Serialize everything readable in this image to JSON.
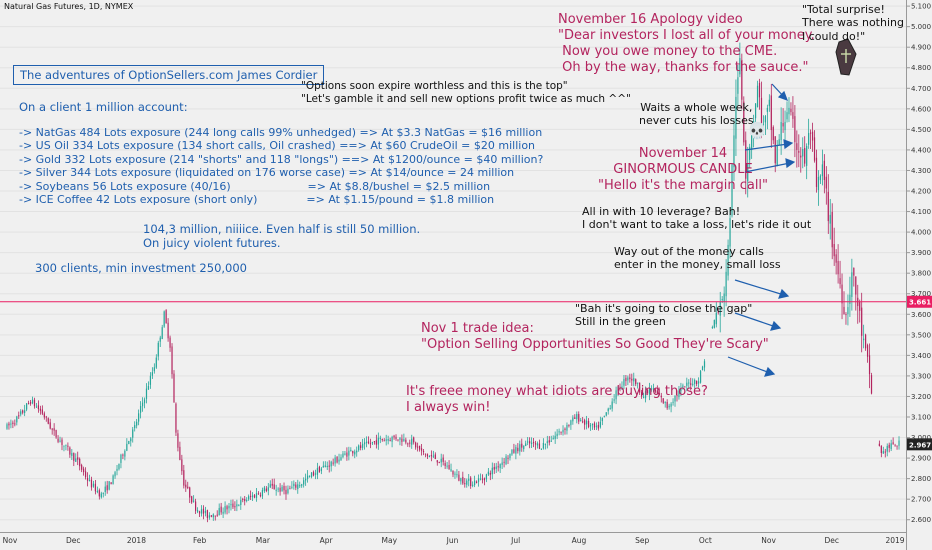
{
  "header": {
    "label": "Natural Gas Futures, 1D, NYMEX"
  },
  "colors": {
    "up": "#26a69a",
    "down": "#b3245e",
    "price_line": "#e91e63",
    "accent": "#1f5fae",
    "magenta": "#b3245e"
  },
  "annotations": {
    "title": "The adventures of OptionSellers.com James Cordier",
    "client_account": "On a client 1 million account:",
    "exposures": [
      "-> NatGas 484 Lots exposure (244 long calls 99% unhedged) => At $3.3 NatGas = $16 million",
      "-> US Oil 334 Lots exposure (134 short calls, Oil crashed) ==> At $60 CrudeOil = $20 million",
      "-> Gold 332 Lots exposure (214 \"shorts\" and 118 \"longs\") ==> At $1200/ounce = $40 million?",
      "-> Silver 344 Lots exposure (liquidated on 176 worse case) => At $14/ounce = 24 million",
      "-> Soybeans 56 Lots exposure (40/16)                      => At $8.8/bushel = $2.5 million",
      "-> ICE Coffee 42 Lots exposure (short only)              => At $1.15/pound = $1.8 million"
    ],
    "total": "104,3 million, niiiice. Even half is still 50 million.\nOn juicy violent futures.",
    "clients": "300 clients, min investment 250,000",
    "options_quote": "\"Options soon expire worthless and this is the top\"\n\"Let's gamble it and sell new options profit twice as much ^^\"",
    "nov16": "November 16 Apology video\n\"Dear investors I lost all of your money.\n Now you owe money to the CME.\n Oh by the way, thanks for the sauce.\"",
    "total_surprise": "\"Total surprise!\nThere was nothing\nI could do!\"",
    "waits": "Waits a whole week,\nnever cuts his losses",
    "skull": "💀",
    "nov14": "November 14\nGINORMOUS CANDLE\n\"Hello it's the margin call\"",
    "all_in": "All in with 10 leverage? Bah!\nI don't want to take a loss, let's ride it out",
    "way_out": "Way out of the money calls\nenter in the money, small loss",
    "bah": "\"Bah it's going to close the gap\"\nStill in the green",
    "nov1": "Nov 1 trade idea:\n\"Option Selling Opportunities So Good They're Scary\"",
    "freee": "It's freee money what idiots are buying those?\nI always win!"
  },
  "chart_data": {
    "type": "candlestick",
    "title": "Natural Gas Futures, 1D, NYMEX",
    "x_labels": [
      "Nov",
      "Dec",
      "2018",
      "Feb",
      "Mar",
      "Apr",
      "May",
      "Jun",
      "Jul",
      "Aug",
      "Sep",
      "Oct",
      "Nov",
      "Dec",
      "2019"
    ],
    "y_ticks": [
      "2.600",
      "2.700",
      "2.800",
      "2.900",
      "3.000",
      "3.100",
      "3.200",
      "3.300",
      "3.400",
      "3.500",
      "3.600",
      "3.700",
      "3.800",
      "3.900",
      "4.000",
      "4.100",
      "4.200",
      "4.300",
      "4.400",
      "4.500",
      "4.600",
      "4.700",
      "4.800",
      "4.900",
      "5.000",
      "5.100"
    ],
    "ylim": [
      2.55,
      5.12
    ],
    "price_lines": [
      {
        "value": 3.661,
        "label": "3.661",
        "color": "#e91e63"
      },
      {
        "value": 2.967,
        "label": "2.967",
        "color": "#222222"
      }
    ],
    "close_path": [
      [
        0,
        3.05
      ],
      [
        6,
        3.1
      ],
      [
        12,
        3.18
      ],
      [
        18,
        3.12
      ],
      [
        24,
        3.02
      ],
      [
        30,
        2.95
      ],
      [
        36,
        2.88
      ],
      [
        42,
        2.78
      ],
      [
        48,
        2.72
      ],
      [
        54,
        2.8
      ],
      [
        60,
        2.95
      ],
      [
        65,
        3.05
      ],
      [
        70,
        3.2
      ],
      [
        75,
        3.35
      ],
      [
        80,
        3.6
      ],
      [
        83,
        3.45
      ],
      [
        86,
        3.02
      ],
      [
        90,
        2.78
      ],
      [
        96,
        2.66
      ],
      [
        102,
        2.62
      ],
      [
        110,
        2.65
      ],
      [
        118,
        2.68
      ],
      [
        126,
        2.72
      ],
      [
        134,
        2.76
      ],
      [
        142,
        2.74
      ],
      [
        150,
        2.78
      ],
      [
        158,
        2.84
      ],
      [
        166,
        2.88
      ],
      [
        174,
        2.93
      ],
      [
        182,
        2.96
      ],
      [
        190,
        2.99
      ],
      [
        198,
        3.0
      ],
      [
        206,
        2.98
      ],
      [
        212,
        2.92
      ],
      [
        218,
        2.9
      ],
      [
        224,
        2.86
      ],
      [
        230,
        2.8
      ],
      [
        236,
        2.78
      ],
      [
        242,
        2.8
      ],
      [
        248,
        2.85
      ],
      [
        254,
        2.9
      ],
      [
        260,
        2.95
      ],
      [
        266,
        2.97
      ],
      [
        272,
        2.96
      ],
      [
        278,
        3.0
      ],
      [
        284,
        3.05
      ],
      [
        290,
        3.1
      ],
      [
        296,
        3.06
      ],
      [
        300,
        3.04
      ],
      [
        304,
        3.1
      ],
      [
        308,
        3.18
      ],
      [
        312,
        3.25
      ],
      [
        316,
        3.3
      ],
      [
        320,
        3.27
      ],
      [
        324,
        3.2
      ],
      [
        328,
        3.24
      ],
      [
        332,
        3.2
      ],
      [
        336,
        3.15
      ],
      [
        340,
        3.2
      ],
      [
        344,
        3.24
      ],
      [
        348,
        3.27
      ],
      [
        352,
        3.28
      ],
      [
        355,
        3.38
      ],
      [
        358,
        3.5
      ],
      [
        361,
        3.6
      ],
      [
        364,
        3.65
      ],
      [
        367,
        3.9
      ],
      [
        370,
        4.5
      ],
      [
        373,
        4.85
      ],
      [
        376,
        4.3
      ],
      [
        379,
        4.5
      ],
      [
        382,
        4.7
      ],
      [
        385,
        4.5
      ],
      [
        388,
        4.6
      ],
      [
        391,
        4.35
      ],
      [
        394,
        4.5
      ],
      [
        397,
        4.6
      ],
      [
        400,
        4.5
      ],
      [
        403,
        4.4
      ],
      [
        406,
        4.35
      ],
      [
        409,
        4.5
      ],
      [
        412,
        4.2
      ],
      [
        415,
        4.3
      ],
      [
        418,
        4.1
      ],
      [
        421,
        3.9
      ],
      [
        424,
        3.75
      ],
      [
        427,
        3.6
      ],
      [
        430,
        3.8
      ],
      [
        433,
        3.65
      ],
      [
        436,
        3.45
      ],
      [
        439,
        3.3
      ],
      [
        442,
        3.05
      ],
      [
        445,
        2.92
      ],
      [
        448,
        2.95
      ],
      [
        451,
        2.96
      ],
      [
        454,
        2.97
      ]
    ]
  }
}
